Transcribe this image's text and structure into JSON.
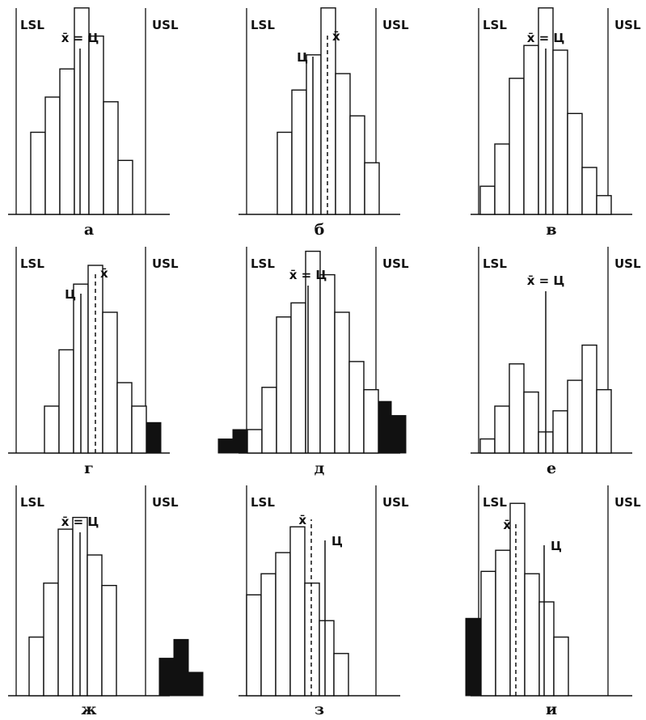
{
  "labels": {
    "lsl": "LSL",
    "usl": "USL",
    "xbar": "x̄",
    "center": "Ц",
    "xbar_eq_center": "x̄ = Ц"
  },
  "panels": [
    {
      "id": "a",
      "caption": "а",
      "mean_label": "x̄ = Ц",
      "outside_left": [],
      "outside_right": [],
      "bars": [
        0.35,
        0.5,
        0.62,
        0.88,
        0.76,
        0.48,
        0.23
      ]
    },
    {
      "id": "b",
      "caption": "б",
      "center_label": "Ц",
      "mean_label": "x̄",
      "outside_left": [],
      "outside_right": [],
      "bars": [
        0.35,
        0.53,
        0.68,
        0.88,
        0.6,
        0.42,
        0.22
      ]
    },
    {
      "id": "v",
      "caption": "в",
      "mean_label": "x̄ = Ц",
      "outside_left": [],
      "outside_right": [],
      "bars": [
        0.12,
        0.3,
        0.58,
        0.72,
        0.88,
        0.7,
        0.43,
        0.2,
        0.08
      ]
    },
    {
      "id": "g",
      "caption": "г",
      "center_label": "Ц",
      "mean_label": "x̄",
      "outside_left": [],
      "outside_right": [
        0.13
      ],
      "bars": [
        0.2,
        0.44,
        0.72,
        0.8,
        0.6,
        0.3,
        0.2
      ]
    },
    {
      "id": "d",
      "caption": "д",
      "mean_label": "x̄ = Ц",
      "outside_left": [
        0.06,
        0.1
      ],
      "outside_right": [
        0.22,
        0.16
      ],
      "bars": [
        0.1,
        0.28,
        0.58,
        0.64,
        0.86,
        0.76,
        0.6,
        0.39,
        0.27
      ]
    },
    {
      "id": "e",
      "caption": "е",
      "mean_label": "x̄ = Ц",
      "outside_left": [],
      "outside_right": [],
      "bars": [
        0.06,
        0.2,
        0.38,
        0.26,
        0.09,
        0.18,
        0.31,
        0.46,
        0.27
      ]
    },
    {
      "id": "zh",
      "caption": "ж",
      "mean_label": "x̄ = Ц",
      "outside_left": [],
      "outside_right": [
        0.16,
        0.24,
        0.1
      ],
      "bars": [
        0.25,
        0.48,
        0.71,
        0.76,
        0.6,
        0.47
      ]
    },
    {
      "id": "z",
      "caption": "з",
      "mean_label": "x̄",
      "center_label": "Ц",
      "outside_left": [],
      "outside_right": [],
      "bars": [
        0.43,
        0.52,
        0.61,
        0.72,
        0.48,
        0.32,
        0.18
      ]
    },
    {
      "id": "i",
      "caption": "и",
      "mean_label": "x̄",
      "center_label": "Ц",
      "outside_left": [
        0.33
      ],
      "outside_right": [],
      "bars": [
        0.53,
        0.62,
        0.82,
        0.52,
        0.4,
        0.25
      ]
    }
  ]
}
